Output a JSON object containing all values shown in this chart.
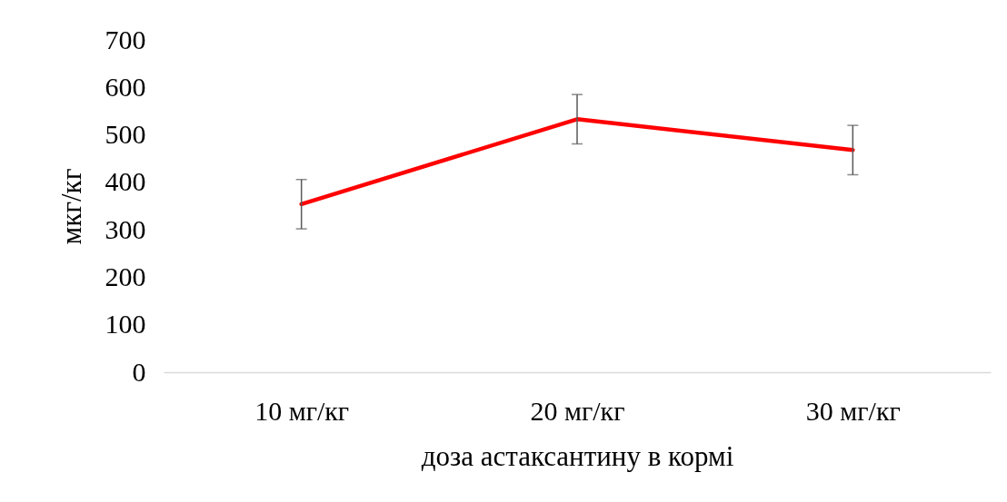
{
  "chart_data": {
    "type": "line",
    "xlabel": "доза астаксантину в кормі",
    "ylabel": "мкг/кг",
    "categories": [
      "10 мг/кг",
      "20 мг/кг",
      "30 мг/кг"
    ],
    "series": [
      {
        "color": "#ff0000",
        "values": [
          354,
          533,
          468
        ],
        "errors": [
          52,
          52,
          52
        ]
      }
    ],
    "ylim": [
      0,
      700
    ],
    "yticks": [
      0,
      100,
      200,
      300,
      400,
      500,
      600,
      700
    ],
    "marker": "none",
    "line_style": "solid"
  }
}
